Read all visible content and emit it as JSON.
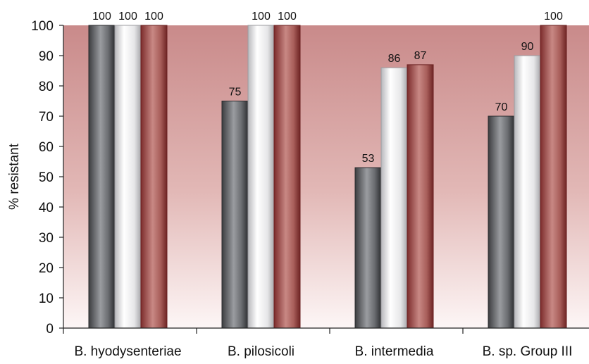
{
  "chart_data": {
    "type": "bar",
    "title": "",
    "xlabel": "",
    "ylabel": "% resistant",
    "ylim": [
      0,
      100
    ],
    "yticks": [
      0,
      10,
      20,
      30,
      40,
      50,
      60,
      70,
      80,
      90,
      100
    ],
    "categories": [
      "B. hyodysenteriae",
      "B. pilosicoli",
      "B. intermedia",
      "B. sp. Group III"
    ],
    "series": [
      {
        "values": [
          100,
          75,
          53,
          70
        ],
        "color": "#7a7c80"
      },
      {
        "values": [
          100,
          100,
          86,
          90
        ],
        "color": "#e8e8ea"
      },
      {
        "values": [
          100,
          100,
          87,
          100
        ],
        "color": "#b56f6b"
      }
    ],
    "data_labels": [
      [
        "100",
        "75",
        "53",
        "70"
      ],
      [
        "100",
        "100",
        "86",
        "90"
      ],
      [
        "100",
        "100",
        "87",
        "100"
      ]
    ],
    "background_gradient": [
      "#c98a8a",
      "#ffffff"
    ],
    "grid": false,
    "legend": "none"
  }
}
